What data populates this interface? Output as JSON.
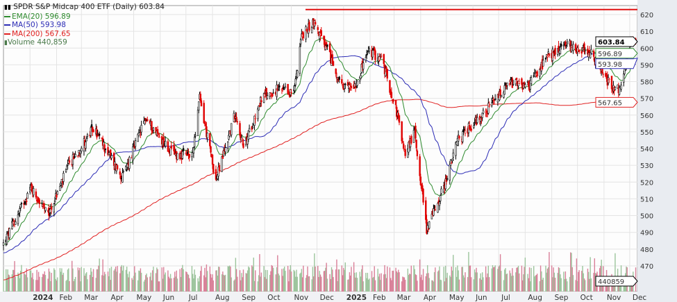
{
  "chart_data": {
    "type": "candlestick",
    "title": "SPDR S&P Midcap 400 ETF (Daily) 603.84",
    "last_price": "603.84",
    "indicators": [
      {
        "name": "EMA(20)",
        "value": "596.89",
        "color": "#2e8b2e"
      },
      {
        "name": "MA(50)",
        "value": "593.98",
        "color": "#2b2bb5"
      },
      {
        "name": "MA(200)",
        "value": "567.65",
        "color": "#e02020"
      }
    ],
    "volume": {
      "label": "Volume 440,859",
      "last_value": "440859"
    },
    "resistance_line": 623,
    "y_axis": {
      "range": [
        460,
        625
      ],
      "ticks": [
        470,
        480,
        490,
        500,
        510,
        520,
        530,
        540,
        550,
        560,
        570,
        580,
        590,
        600,
        610,
        620
      ],
      "side": "right"
    },
    "x_axis": {
      "range": [
        "2023-12-01",
        "2025-12-10"
      ],
      "labels": [
        {
          "date": "2024-01-01",
          "text": "2024",
          "bold": true
        },
        {
          "date": "2024-02-01",
          "text": "Feb"
        },
        {
          "date": "2024-03-01",
          "text": "Mar"
        },
        {
          "date": "2024-04-01",
          "text": "Apr"
        },
        {
          "date": "2024-05-01",
          "text": "May"
        },
        {
          "date": "2024-06-01",
          "text": "Jun"
        },
        {
          "date": "2024-07-01",
          "text": "Jul"
        },
        {
          "date": "2024-08-01",
          "text": "Aug"
        },
        {
          "date": "2024-09-01",
          "text": "Sep"
        },
        {
          "date": "2024-10-01",
          "text": "Oct"
        },
        {
          "date": "2024-11-01",
          "text": "Nov"
        },
        {
          "date": "2024-12-01",
          "text": "Dec"
        },
        {
          "date": "2025-01-01",
          "text": "2025",
          "bold": true
        },
        {
          "date": "2025-02-01",
          "text": "Feb"
        },
        {
          "date": "2025-03-01",
          "text": "Mar"
        },
        {
          "date": "2025-04-01",
          "text": "Apr"
        },
        {
          "date": "2025-05-01",
          "text": "May"
        },
        {
          "date": "2025-06-01",
          "text": "Jun"
        },
        {
          "date": "2025-07-01",
          "text": "Jul"
        },
        {
          "date": "2025-08-01",
          "text": "Aug"
        },
        {
          "date": "2025-09-01",
          "text": "Sep"
        },
        {
          "date": "2025-10-01",
          "text": "Oct"
        },
        {
          "date": "2025-11-01",
          "text": "Nov"
        },
        {
          "date": "2025-12-01",
          "text": "Dec"
        }
      ]
    },
    "grid": true,
    "approx_closes": [
      [
        "2023-12-01",
        483
      ],
      [
        "2024-01-02",
        517
      ],
      [
        "2024-01-22",
        500
      ],
      [
        "2024-02-15",
        530
      ],
      [
        "2024-03-15",
        552
      ],
      [
        "2024-04-18",
        523
      ],
      [
        "2024-05-15",
        558
      ],
      [
        "2024-06-15",
        537
      ],
      [
        "2024-07-08",
        535
      ],
      [
        "2024-07-17",
        570
      ],
      [
        "2024-08-05",
        521
      ],
      [
        "2024-08-28",
        562
      ],
      [
        "2024-09-06",
        540
      ],
      [
        "2024-09-27",
        570
      ],
      [
        "2024-10-15",
        575
      ],
      [
        "2024-11-04",
        573
      ],
      [
        "2024-11-12",
        606
      ],
      [
        "2024-11-27",
        616
      ],
      [
        "2024-12-16",
        595
      ],
      [
        "2024-12-31",
        575
      ],
      [
        "2025-01-15",
        579
      ],
      [
        "2025-01-30",
        598
      ],
      [
        "2025-02-14",
        594
      ],
      [
        "2025-03-04",
        562
      ],
      [
        "2025-03-13",
        537
      ],
      [
        "2025-03-25",
        550
      ],
      [
        "2025-04-08",
        492
      ],
      [
        "2025-04-28",
        517
      ],
      [
        "2025-05-15",
        546
      ],
      [
        "2025-06-15",
        562
      ],
      [
        "2025-07-15",
        579
      ],
      [
        "2025-08-04",
        577
      ],
      [
        "2025-08-28",
        595
      ],
      [
        "2025-09-18",
        602
      ],
      [
        "2025-10-15",
        598
      ],
      [
        "2025-11-07",
        579
      ],
      [
        "2025-11-20",
        575
      ],
      [
        "2025-12-03",
        606
      ],
      [
        "2025-12-08",
        603.84
      ]
    ]
  }
}
